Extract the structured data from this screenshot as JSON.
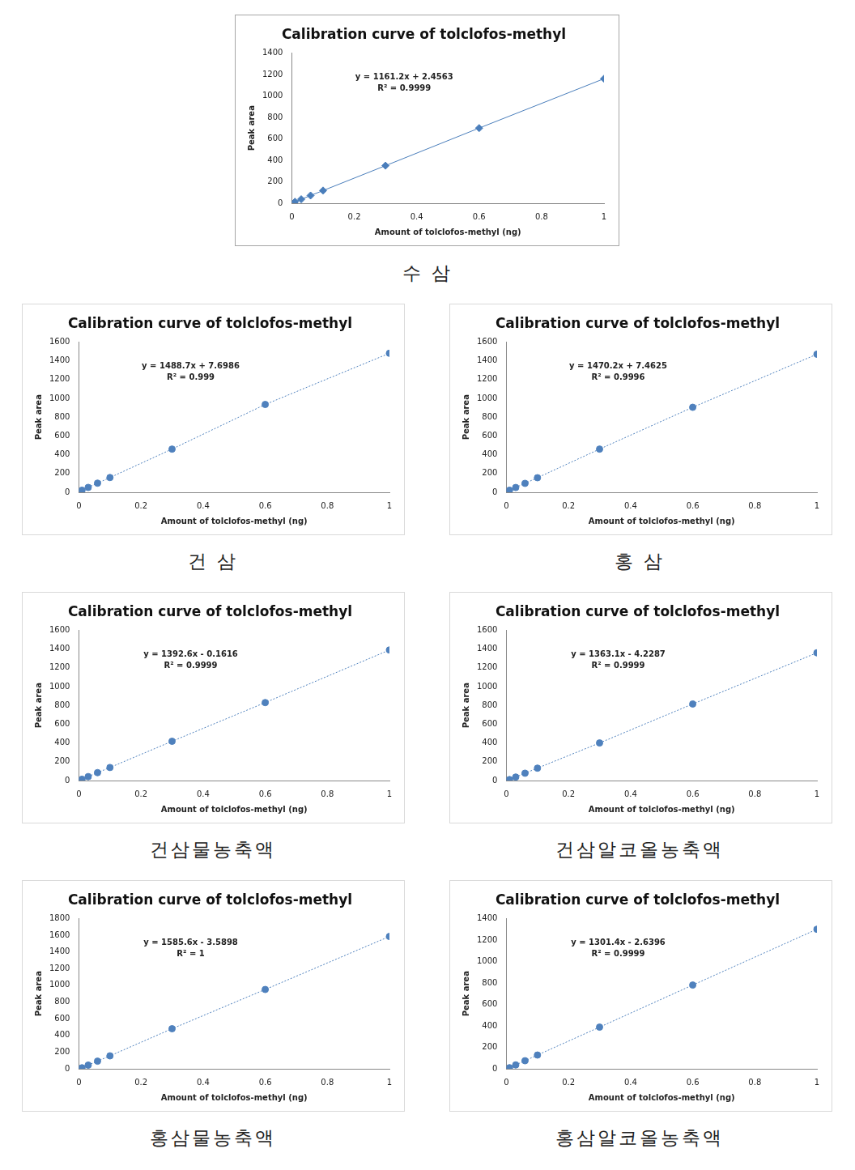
{
  "chart_data": [
    {
      "type": "scatter",
      "title": "Calibration curve of tolclofos-methyl",
      "caption": "수 삼",
      "x_label": "Amount of tolclofos-methyl (ng)",
      "y_label": "Peak area",
      "annotations": [
        "y = 1161.2x + 2.4563",
        "R² = 0.9999"
      ],
      "x": [
        0.01,
        0.03,
        0.06,
        0.1,
        0.3,
        0.6,
        1
      ],
      "series": [
        {
          "color": "#4a7ebb",
          "marker": "diamond",
          "line_style": "solid",
          "values": [
            14,
            37,
            72,
            118,
            350,
            700,
            1160
          ]
        }
      ],
      "xlim": [
        0,
        1
      ],
      "xticks": [
        0,
        0.2,
        0.4,
        0.6,
        0.8,
        1
      ],
      "ylim": [
        0,
        1400
      ],
      "yticks": [
        0,
        200,
        400,
        600,
        800,
        1000,
        1200,
        1400
      ],
      "grid": false
    },
    {
      "type": "scatter",
      "title": "Calibration curve of tolclofos-methyl",
      "caption": "건 삼",
      "x_label": "Amount of tolclofos-methyl (ng)",
      "y_label": "Peak area",
      "annotations": [
        "y = 1488.7x + 7.6986",
        "R² = 0.999"
      ],
      "x": [
        0.01,
        0.03,
        0.06,
        0.1,
        0.3,
        0.6,
        1
      ],
      "series": [
        {
          "color": "#4f81bd",
          "marker": "circle",
          "line_style": "dotted",
          "values": [
            22,
            52,
            97,
            157,
            460,
            935,
            1480
          ]
        }
      ],
      "xlim": [
        0,
        1
      ],
      "xticks": [
        0,
        0.2,
        0.4,
        0.6,
        0.8,
        1
      ],
      "ylim": [
        0,
        1600
      ],
      "yticks": [
        0,
        200,
        400,
        600,
        800,
        1000,
        1200,
        1400,
        1600
      ],
      "grid": false
    },
    {
      "type": "scatter",
      "title": "Calibration curve of tolclofos-methyl",
      "caption": "홍 삼",
      "x_label": "Amount of tolclofos-methyl (ng)",
      "y_label": "Peak area",
      "annotations": [
        "y = 1470.2x + 7.4625",
        "R² = 0.9996"
      ],
      "x": [
        0.01,
        0.03,
        0.06,
        0.1,
        0.3,
        0.6,
        1
      ],
      "series": [
        {
          "color": "#4f81bd",
          "marker": "circle",
          "line_style": "dotted",
          "values": [
            22,
            51,
            95,
            155,
            460,
            905,
            1470
          ]
        }
      ],
      "xlim": [
        0,
        1
      ],
      "xticks": [
        0,
        0.2,
        0.4,
        0.6,
        0.8,
        1
      ],
      "ylim": [
        0,
        1600
      ],
      "yticks": [
        0,
        200,
        400,
        600,
        800,
        1000,
        1200,
        1400,
        1600
      ],
      "grid": false
    },
    {
      "type": "scatter",
      "title": "Calibration curve of tolclofos-methyl",
      "caption": "건삼물농축액",
      "x_label": "Amount of tolclofos-methyl (ng)",
      "y_label": "Peak area",
      "annotations": [
        "y = 1392.6x - 0.1616",
        "R² = 0.9999"
      ],
      "x": [
        0.01,
        0.03,
        0.06,
        0.1,
        0.3,
        0.6,
        1
      ],
      "series": [
        {
          "color": "#4f81bd",
          "marker": "circle",
          "line_style": "dotted",
          "values": [
            14,
            42,
            84,
            139,
            418,
            830,
            1390
          ]
        }
      ],
      "xlim": [
        0,
        1
      ],
      "xticks": [
        0,
        0.2,
        0.4,
        0.6,
        0.8,
        1
      ],
      "ylim": [
        0,
        1600
      ],
      "yticks": [
        0,
        200,
        400,
        600,
        800,
        1000,
        1200,
        1400,
        1600
      ],
      "grid": false
    },
    {
      "type": "scatter",
      "title": "Calibration curve of tolclofos-methyl",
      "caption": "건삼알코올농축액",
      "x_label": "Amount of tolclofos-methyl (ng)",
      "y_label": "Peak area",
      "annotations": [
        "y = 1363.1x - 4.2287",
        "R² = 0.9999"
      ],
      "x": [
        0.01,
        0.03,
        0.06,
        0.1,
        0.3,
        0.6,
        1
      ],
      "series": [
        {
          "color": "#4f81bd",
          "marker": "circle",
          "line_style": "dotted",
          "values": [
            10,
            37,
            78,
            132,
            400,
            815,
            1360
          ]
        }
      ],
      "xlim": [
        0,
        1
      ],
      "xticks": [
        0,
        0.2,
        0.4,
        0.6,
        0.8,
        1
      ],
      "ylim": [
        0,
        1600
      ],
      "yticks": [
        0,
        200,
        400,
        600,
        800,
        1000,
        1200,
        1400,
        1600
      ],
      "grid": false
    },
    {
      "type": "scatter",
      "title": "Calibration curve of tolclofos-methyl",
      "caption": "홍삼물농축액",
      "x_label": "Amount of tolclofos-methyl (ng)",
      "y_label": "Peak area",
      "annotations": [
        "y = 1585.6x - 3.5898",
        "R² = 1"
      ],
      "x": [
        0.01,
        0.03,
        0.06,
        0.1,
        0.3,
        0.6,
        1
      ],
      "series": [
        {
          "color": "#4f81bd",
          "marker": "circle",
          "line_style": "dotted",
          "values": [
            12,
            44,
            91,
            155,
            480,
            950,
            1585
          ]
        }
      ],
      "xlim": [
        0,
        1
      ],
      "xticks": [
        0,
        0.2,
        0.4,
        0.6,
        0.8,
        1
      ],
      "ylim": [
        0,
        1800
      ],
      "yticks": [
        0,
        200,
        400,
        600,
        800,
        1000,
        1200,
        1400,
        1600,
        1800
      ],
      "grid": false
    },
    {
      "type": "scatter",
      "title": "Calibration curve of tolclofos-methyl",
      "caption": "홍삼알코올농축액",
      "x_label": "Amount of tolclofos-methyl (ng)",
      "y_label": "Peak area",
      "annotations": [
        "y = 1301.4x - 2.6396",
        "R² = 0.9999"
      ],
      "x": [
        0.01,
        0.03,
        0.06,
        0.1,
        0.3,
        0.6,
        1
      ],
      "series": [
        {
          "color": "#4f81bd",
          "marker": "circle",
          "line_style": "dotted",
          "values": [
            10,
            36,
            75,
            128,
            388,
            780,
            1300
          ]
        }
      ],
      "xlim": [
        0,
        1
      ],
      "xticks": [
        0,
        0.2,
        0.4,
        0.6,
        0.8,
        1
      ],
      "ylim": [
        0,
        1400
      ],
      "yticks": [
        0,
        200,
        400,
        600,
        800,
        1000,
        1200,
        1400
      ],
      "grid": false
    }
  ]
}
